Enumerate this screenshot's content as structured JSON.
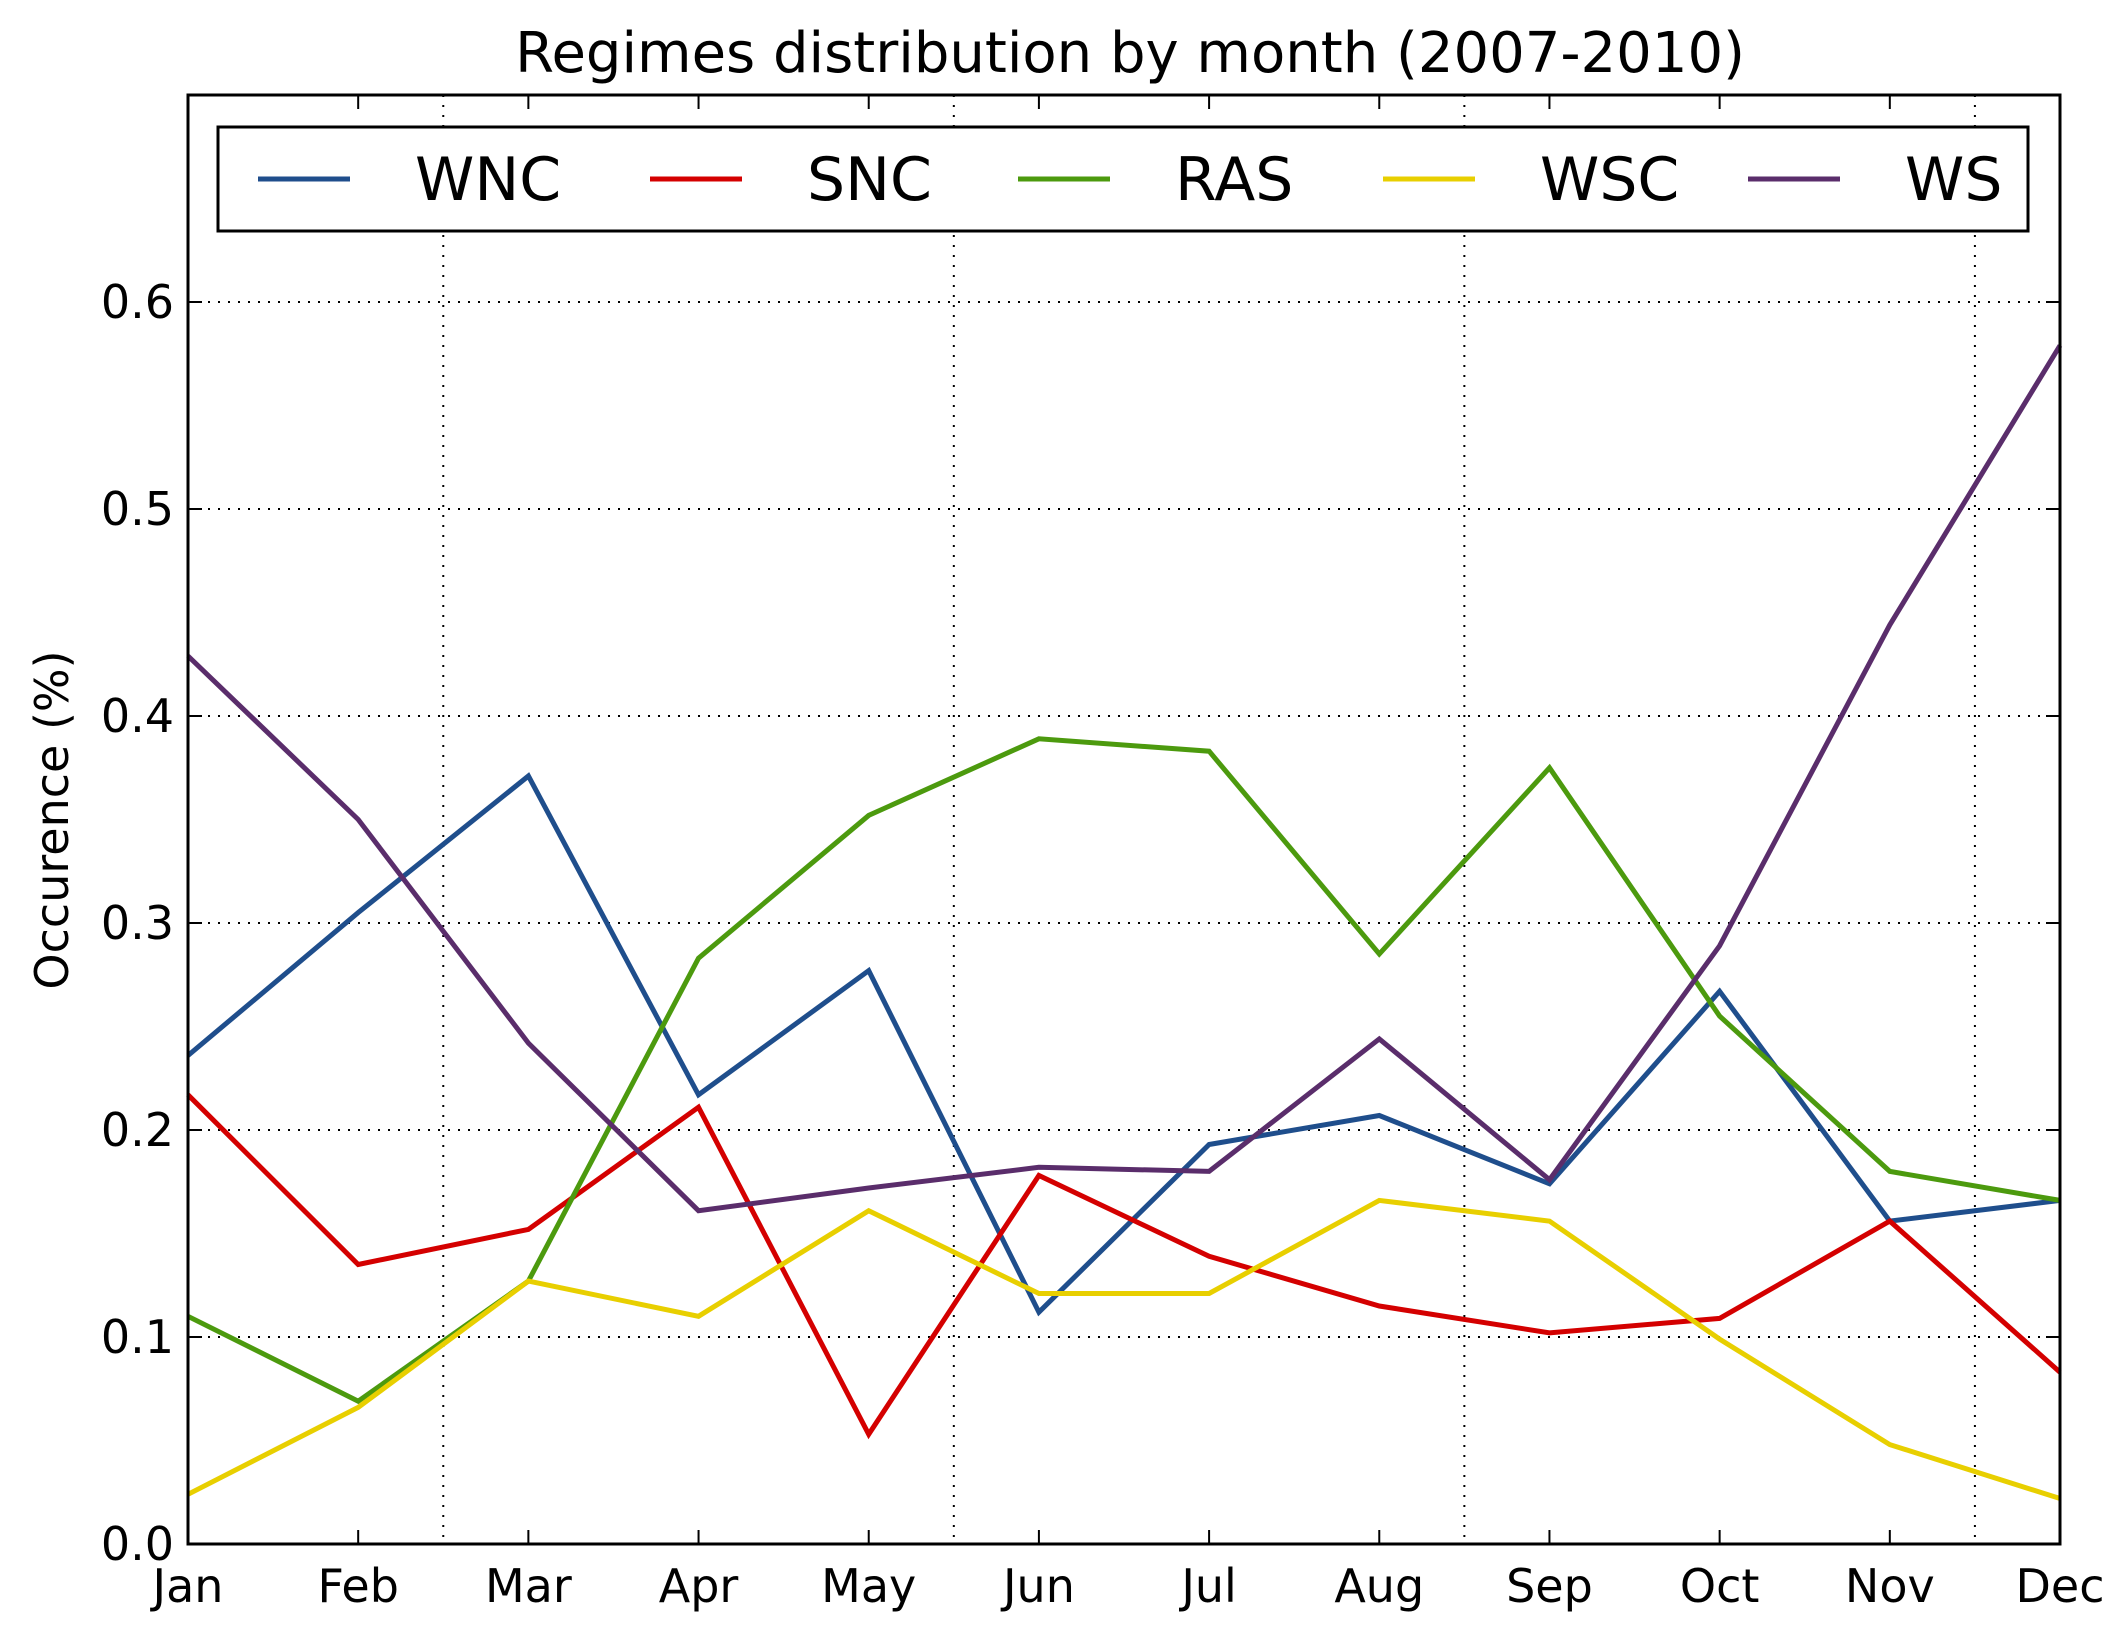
{
  "chart_data": {
    "type": "line",
    "title": "Regimes distribution by month (2007-2010)",
    "xlabel": "",
    "ylabel": "Occurence (%)",
    "categories": [
      "Jan",
      "Feb",
      "Mar",
      "Apr",
      "May",
      "Jun",
      "Jul",
      "Aug",
      "Sep",
      "Oct",
      "Nov",
      "Dec"
    ],
    "ylim": [
      0.0,
      0.7
    ],
    "yticks": [
      0.0,
      0.1,
      0.2,
      0.3,
      0.4,
      0.5,
      0.6
    ],
    "ytick_labels": [
      "0.0",
      "0.1",
      "0.2",
      "0.3",
      "0.4",
      "0.5",
      "0.6"
    ],
    "vertical_gridlines_at": [
      1.5,
      4.5,
      7.5,
      10.5
    ],
    "grid": "dotted",
    "legend_position": "top",
    "series": [
      {
        "name": "WNC",
        "color": "#1f4e8c",
        "values": [
          0.236,
          0.305,
          0.371,
          0.217,
          0.277,
          0.112,
          0.193,
          0.207,
          0.174,
          0.267,
          0.156,
          0.166
        ]
      },
      {
        "name": "SNC",
        "color": "#d40000",
        "values": [
          0.217,
          0.135,
          0.152,
          0.211,
          0.053,
          0.178,
          0.139,
          0.115,
          0.102,
          0.109,
          0.156,
          0.083
        ]
      },
      {
        "name": "RAS",
        "color": "#4c9a0e",
        "values": [
          0.11,
          0.069,
          0.127,
          0.283,
          0.352,
          0.389,
          0.383,
          0.285,
          0.375,
          0.255,
          0.18,
          0.166
        ]
      },
      {
        "name": "WSC",
        "color": "#e8cf00",
        "values": [
          0.024,
          0.066,
          0.127,
          0.11,
          0.161,
          0.121,
          0.121,
          0.166,
          0.156,
          0.099,
          0.048,
          0.022
        ]
      },
      {
        "name": "WS",
        "color": "#5a2d6b",
        "values": [
          0.429,
          0.35,
          0.242,
          0.161,
          0.172,
          0.182,
          0.18,
          0.244,
          0.176,
          0.289,
          0.444,
          0.579
        ]
      }
    ]
  }
}
